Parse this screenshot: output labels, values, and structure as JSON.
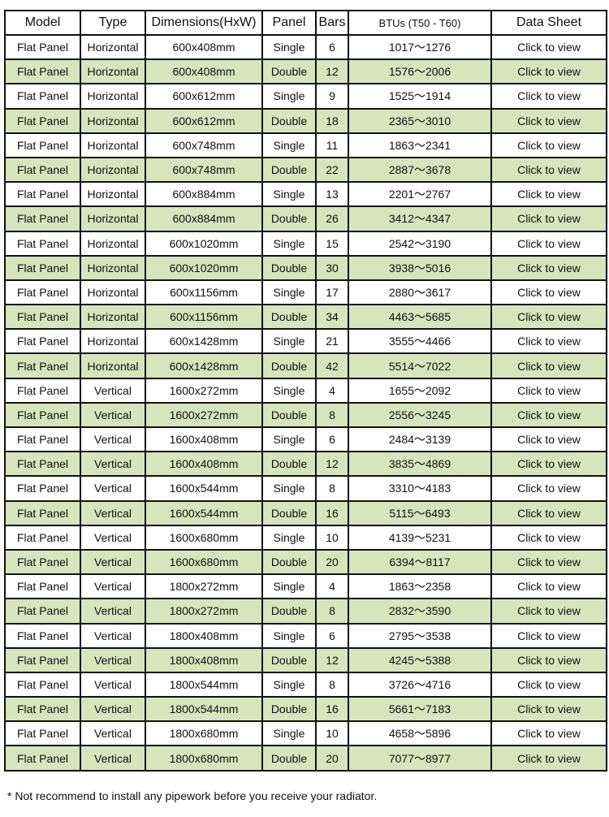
{
  "table": {
    "headers": [
      "Model",
      "Type",
      "Dimensions(HxW)",
      "Panel",
      "Bars",
      "BTUs (T50 - T60)",
      "Data Sheet"
    ],
    "row_highlight_color": "#d8e4bc",
    "rows": [
      [
        "Flat Panel",
        "Horizontal",
        "600x408mm",
        "Single",
        "6",
        "1017～1276",
        "Click to view"
      ],
      [
        "Flat Panel",
        "Horizontal",
        "600x408mm",
        "Double",
        "12",
        "1576～2006",
        "Click to view"
      ],
      [
        "Flat Panel",
        "Horizontal",
        "600x612mm",
        "Single",
        "9",
        "1525～1914",
        "Click to view"
      ],
      [
        "Flat Panel",
        "Horizontal",
        "600x612mm",
        "Double",
        "18",
        "2365～3010",
        "Click to view"
      ],
      [
        "Flat Panel",
        "Horizontal",
        "600x748mm",
        "Single",
        "11",
        "1863～2341",
        "Click to view"
      ],
      [
        "Flat Panel",
        "Horizontal",
        "600x748mm",
        "Double",
        "22",
        "2887～3678",
        "Click to view"
      ],
      [
        "Flat Panel",
        "Horizontal",
        "600x884mm",
        "Single",
        "13",
        "2201～2767",
        "Click to view"
      ],
      [
        "Flat Panel",
        "Horizontal",
        "600x884mm",
        "Double",
        "26",
        "3412～4347",
        "Click to view"
      ],
      [
        "Flat Panel",
        "Horizontal",
        "600x1020mm",
        "Single",
        "15",
        "2542～3190",
        "Click to view"
      ],
      [
        "Flat Panel",
        "Horizontal",
        "600x1020mm",
        "Double",
        "30",
        "3938～5016",
        "Click to view"
      ],
      [
        "Flat Panel",
        "Horizontal",
        "600x1156mm",
        "Single",
        "17",
        "2880～3617",
        "Click to view"
      ],
      [
        "Flat Panel",
        "Horizontal",
        "600x1156mm",
        "Double",
        "34",
        "4463～5685",
        "Click to view"
      ],
      [
        "Flat Panel",
        "Horizontal",
        "600x1428mm",
        "Single",
        "21",
        "3555～4466",
        "Click to view"
      ],
      [
        "Flat Panel",
        "Horizontal",
        "600x1428mm",
        "Double",
        "42",
        "5514～7022",
        "Click to view"
      ],
      [
        "Flat Panel",
        "Vertical",
        "1600x272mm",
        "Single",
        "4",
        "1655～2092",
        "Click to view"
      ],
      [
        "Flat Panel",
        "Vertical",
        "1600x272mm",
        "Double",
        "8",
        "2556～3245",
        "Click to view"
      ],
      [
        "Flat Panel",
        "Vertical",
        "1600x408mm",
        "Single",
        "6",
        "2484～3139",
        "Click to view"
      ],
      [
        "Flat Panel",
        "Vertical",
        "1600x408mm",
        "Double",
        "12",
        "3835～4869",
        "Click to view"
      ],
      [
        "Flat Panel",
        "Vertical",
        "1600x544mm",
        "Single",
        "8",
        "3310～4183",
        "Click to view"
      ],
      [
        "Flat Panel",
        "Vertical",
        "1600x544mm",
        "Double",
        "16",
        "5115～6493",
        "Click to view"
      ],
      [
        "Flat Panel",
        "Vertical",
        "1600x680mm",
        "Single",
        "10",
        "4139～5231",
        "Click to view"
      ],
      [
        "Flat Panel",
        "Vertical",
        "1600x680mm",
        "Double",
        "20",
        "6394～8117",
        "Click to view"
      ],
      [
        "Flat Panel",
        "Vertical",
        "1800x272mm",
        "Single",
        "4",
        "1863～2358",
        "Click to view"
      ],
      [
        "Flat Panel",
        "Vertical",
        "1800x272mm",
        "Double",
        "8",
        "2832～3590",
        "Click to view"
      ],
      [
        "Flat Panel",
        "Vertical",
        "1800x408mm",
        "Single",
        "6",
        "2795～3538",
        "Click to view"
      ],
      [
        "Flat Panel",
        "Vertical",
        "1800x408mm",
        "Double",
        "12",
        "4245～5388",
        "Click to view"
      ],
      [
        "Flat Panel",
        "Vertical",
        "1800x544mm",
        "Single",
        "8",
        "3726～4716",
        "Click to view"
      ],
      [
        "Flat Panel",
        "Vertical",
        "1800x544mm",
        "Double",
        "16",
        "5661～7183",
        "Click to view"
      ],
      [
        "Flat Panel",
        "Vertical",
        "1800x680mm",
        "Single",
        "10",
        "4658～5896",
        "Click to view"
      ],
      [
        "Flat Panel",
        "Vertical",
        "1800x680mm",
        "Double",
        "20",
        "7077～8977",
        "Click to view"
      ]
    ]
  },
  "footnote": "* Not recommend to install any pipework before you receive your radiator."
}
